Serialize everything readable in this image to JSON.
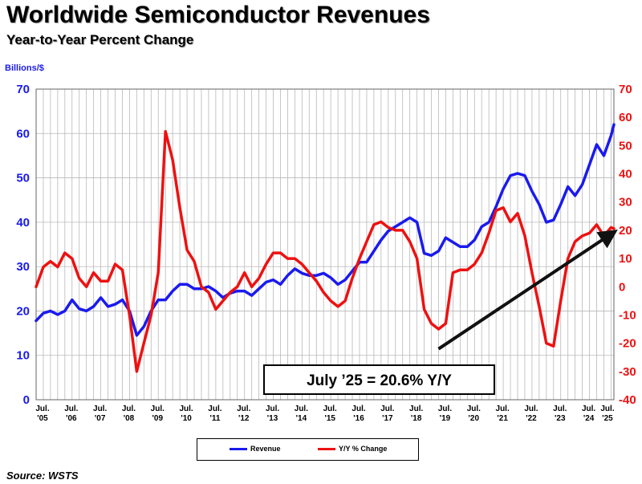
{
  "header": {
    "title": "Worldwide Semiconductor Revenues",
    "subtitle": "Year-to-Year Percent Change",
    "left_axis_unit": "Billions/$"
  },
  "footer": {
    "source": "Source: WSTS"
  },
  "callout": {
    "text": "July ’25 = 20.6% Y/Y"
  },
  "legend": {
    "revenue": "Revenue",
    "yoy": "Y/Y % Change"
  },
  "colors": {
    "revenue": "#1a1aee",
    "yoy": "#ee1111",
    "trend": "#111111",
    "grid": "#b8b8b8"
  },
  "chart_data": {
    "type": "line",
    "x_labels": [
      {
        "month": "Jul.",
        "year": "'05"
      },
      {
        "month": "Jul.",
        "year": "'06"
      },
      {
        "month": "Jul.",
        "year": "'07"
      },
      {
        "month": "Jul.",
        "year": "'08"
      },
      {
        "month": "Jul.",
        "year": "'09"
      },
      {
        "month": "Jul.",
        "year": "'10"
      },
      {
        "month": "Jul.",
        "year": "'11"
      },
      {
        "month": "Jul.",
        "year": "'12"
      },
      {
        "month": "Jul.",
        "year": "'13"
      },
      {
        "month": "Jul.",
        "year": "'14"
      },
      {
        "month": "Jul.",
        "year": "'15"
      },
      {
        "month": "Jul.",
        "year": "'16"
      },
      {
        "month": "Jul.",
        "year": "'17"
      },
      {
        "month": "Jul.",
        "year": "'18"
      },
      {
        "month": "Jul.",
        "year": "'19"
      },
      {
        "month": "Jul.",
        "year": "'20"
      },
      {
        "month": "Jul.",
        "year": "'21"
      },
      {
        "month": "Jul.",
        "year": "'22"
      },
      {
        "month": "Jul.",
        "year": "'23"
      },
      {
        "month": "Jul.",
        "year": "'24"
      },
      {
        "month": "Jul.",
        "year": "'25"
      }
    ],
    "y_left": {
      "label": "Billions/$",
      "min": 0,
      "max": 70,
      "ticks": [
        0,
        10,
        20,
        30,
        40,
        50,
        60,
        70
      ]
    },
    "y_right": {
      "min": -40,
      "max": 70,
      "ticks": [
        -40,
        -30,
        -20,
        -10,
        0,
        10,
        20,
        30,
        40,
        50,
        60,
        70
      ]
    },
    "grid": true,
    "legend_position": "bottom-center",
    "series": [
      {
        "name": "Revenue",
        "axis": "left",
        "points": [
          [
            2005.5,
            17.8
          ],
          [
            2005.75,
            19.5
          ],
          [
            2006.0,
            20.0
          ],
          [
            2006.25,
            19.2
          ],
          [
            2006.5,
            20.0
          ],
          [
            2006.75,
            22.5
          ],
          [
            2007.0,
            20.5
          ],
          [
            2007.25,
            20.0
          ],
          [
            2007.5,
            21.0
          ],
          [
            2007.75,
            23.0
          ],
          [
            2008.0,
            21.0
          ],
          [
            2008.25,
            21.5
          ],
          [
            2008.5,
            22.5
          ],
          [
            2008.75,
            20.0
          ],
          [
            2009.0,
            14.5
          ],
          [
            2009.25,
            16.5
          ],
          [
            2009.5,
            20.0
          ],
          [
            2009.75,
            22.5
          ],
          [
            2010.0,
            22.5
          ],
          [
            2010.25,
            24.5
          ],
          [
            2010.5,
            26.0
          ],
          [
            2010.75,
            26.0
          ],
          [
            2011.0,
            25.0
          ],
          [
            2011.25,
            25.0
          ],
          [
            2011.5,
            25.5
          ],
          [
            2011.75,
            24.5
          ],
          [
            2012.0,
            23.0
          ],
          [
            2012.25,
            24.0
          ],
          [
            2012.5,
            24.5
          ],
          [
            2012.75,
            24.5
          ],
          [
            2013.0,
            23.5
          ],
          [
            2013.25,
            25.0
          ],
          [
            2013.5,
            26.5
          ],
          [
            2013.75,
            27.0
          ],
          [
            2014.0,
            26.0
          ],
          [
            2014.25,
            28.0
          ],
          [
            2014.5,
            29.5
          ],
          [
            2014.75,
            28.5
          ],
          [
            2015.0,
            28.0
          ],
          [
            2015.25,
            28.0
          ],
          [
            2015.5,
            28.5
          ],
          [
            2015.75,
            27.5
          ],
          [
            2016.0,
            26.0
          ],
          [
            2016.25,
            27.0
          ],
          [
            2016.5,
            29.0
          ],
          [
            2016.75,
            31.0
          ],
          [
            2017.0,
            31.0
          ],
          [
            2017.25,
            33.5
          ],
          [
            2017.5,
            36.0
          ],
          [
            2017.75,
            38.0
          ],
          [
            2018.0,
            39.0
          ],
          [
            2018.25,
            40.0
          ],
          [
            2018.5,
            41.0
          ],
          [
            2018.75,
            40.0
          ],
          [
            2019.0,
            33.0
          ],
          [
            2019.25,
            32.5
          ],
          [
            2019.5,
            33.5
          ],
          [
            2019.75,
            36.5
          ],
          [
            2020.0,
            35.5
          ],
          [
            2020.25,
            34.5
          ],
          [
            2020.5,
            34.5
          ],
          [
            2020.75,
            36.0
          ],
          [
            2021.0,
            39.0
          ],
          [
            2021.25,
            40.0
          ],
          [
            2021.5,
            43.5
          ],
          [
            2021.75,
            47.5
          ],
          [
            2022.0,
            50.5
          ],
          [
            2022.25,
            51.0
          ],
          [
            2022.5,
            50.5
          ],
          [
            2022.75,
            47.0
          ],
          [
            2023.0,
            44.0
          ],
          [
            2023.25,
            40.0
          ],
          [
            2023.5,
            40.5
          ],
          [
            2023.75,
            44.0
          ],
          [
            2024.0,
            48.0
          ],
          [
            2024.25,
            46.0
          ],
          [
            2024.5,
            48.5
          ],
          [
            2024.75,
            53.0
          ],
          [
            2025.0,
            57.5
          ],
          [
            2025.25,
            55.0
          ],
          [
            2025.5,
            59.5
          ],
          [
            2025.6,
            62.0
          ]
        ]
      },
      {
        "name": "Y/Y % Change",
        "axis": "right",
        "points": [
          [
            2005.5,
            0
          ],
          [
            2005.75,
            7
          ],
          [
            2006.0,
            9
          ],
          [
            2006.25,
            7
          ],
          [
            2006.5,
            12
          ],
          [
            2006.75,
            10
          ],
          [
            2007.0,
            3
          ],
          [
            2007.25,
            0
          ],
          [
            2007.5,
            5
          ],
          [
            2007.75,
            2
          ],
          [
            2008.0,
            2
          ],
          [
            2008.25,
            8
          ],
          [
            2008.5,
            6
          ],
          [
            2008.75,
            -10
          ],
          [
            2009.0,
            -30
          ],
          [
            2009.25,
            -20
          ],
          [
            2009.5,
            -10
          ],
          [
            2009.75,
            5
          ],
          [
            2010.0,
            55
          ],
          [
            2010.25,
            45
          ],
          [
            2010.5,
            28
          ],
          [
            2010.75,
            13
          ],
          [
            2011.0,
            9
          ],
          [
            2011.25,
            0
          ],
          [
            2011.5,
            -2
          ],
          [
            2011.75,
            -8
          ],
          [
            2012.0,
            -5
          ],
          [
            2012.25,
            -2
          ],
          [
            2012.5,
            0
          ],
          [
            2012.75,
            5
          ],
          [
            2013.0,
            0
          ],
          [
            2013.25,
            3
          ],
          [
            2013.5,
            8
          ],
          [
            2013.75,
            12
          ],
          [
            2014.0,
            12
          ],
          [
            2014.25,
            10
          ],
          [
            2014.5,
            10
          ],
          [
            2014.75,
            8
          ],
          [
            2015.0,
            5
          ],
          [
            2015.25,
            2
          ],
          [
            2015.5,
            -2
          ],
          [
            2015.75,
            -5
          ],
          [
            2016.0,
            -7
          ],
          [
            2016.25,
            -5
          ],
          [
            2016.5,
            3
          ],
          [
            2016.75,
            10
          ],
          [
            2017.0,
            16
          ],
          [
            2017.25,
            22
          ],
          [
            2017.5,
            23
          ],
          [
            2017.75,
            21
          ],
          [
            2018.0,
            20
          ],
          [
            2018.25,
            20
          ],
          [
            2018.5,
            16
          ],
          [
            2018.75,
            10
          ],
          [
            2019.0,
            -8
          ],
          [
            2019.25,
            -13
          ],
          [
            2019.5,
            -15
          ],
          [
            2019.75,
            -13
          ],
          [
            2020.0,
            5
          ],
          [
            2020.25,
            6
          ],
          [
            2020.5,
            6
          ],
          [
            2020.75,
            8
          ],
          [
            2021.0,
            12
          ],
          [
            2021.25,
            19
          ],
          [
            2021.5,
            27
          ],
          [
            2021.75,
            28
          ],
          [
            2022.0,
            23
          ],
          [
            2022.25,
            26
          ],
          [
            2022.5,
            18
          ],
          [
            2022.75,
            5
          ],
          [
            2023.0,
            -7
          ],
          [
            2023.25,
            -20
          ],
          [
            2023.5,
            -21
          ],
          [
            2023.75,
            -5
          ],
          [
            2024.0,
            10
          ],
          [
            2024.25,
            16
          ],
          [
            2024.5,
            18
          ],
          [
            2024.75,
            19
          ],
          [
            2025.0,
            22
          ],
          [
            2025.25,
            18
          ],
          [
            2025.5,
            21
          ],
          [
            2025.6,
            20.6
          ]
        ]
      }
    ],
    "trend_arrow": {
      "from": [
        2019.5,
        -22
      ],
      "to": [
        2025.55,
        19
      ]
    },
    "annotation": "July ’25 = 20.6% Y/Y"
  }
}
